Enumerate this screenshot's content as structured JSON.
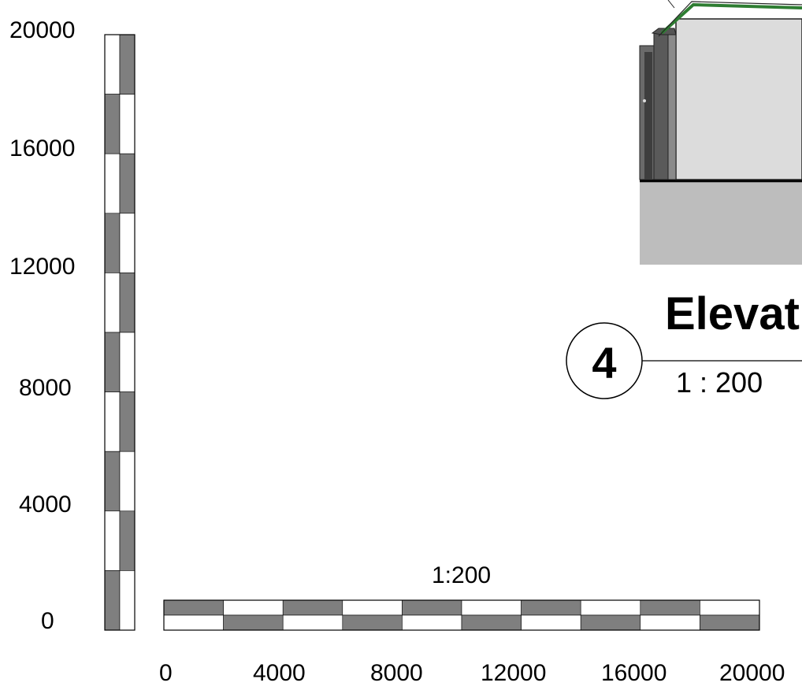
{
  "vertical_scale": {
    "ticks": [
      "20000",
      "16000",
      "12000",
      "8000",
      "4000",
      "0"
    ],
    "segments": 10
  },
  "horizontal_scale": {
    "label": "1:200",
    "ticks": [
      "0",
      "4000",
      "8000",
      "12000",
      "16000",
      "20000"
    ],
    "segments": 10
  },
  "view_tag": {
    "number": "4",
    "title": "Elevat",
    "scale": "1 : 200"
  },
  "colors": {
    "scale_dark": "#7f7f7f",
    "scale_light": "#ffffff",
    "roof_edge": "#2e7d32",
    "wall_light": "#dcdcdc",
    "wall_dark": "#5a5a5a",
    "ground": "#bdbdbd"
  }
}
